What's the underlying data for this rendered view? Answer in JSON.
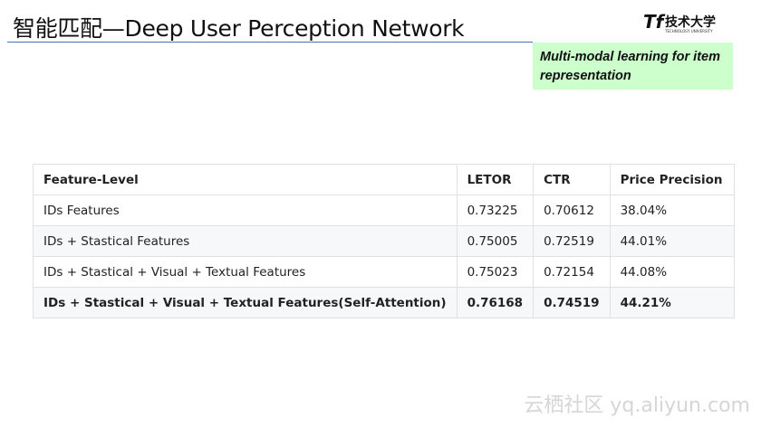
{
  "slide": {
    "title": "智能匹配—Deep User Perception Network",
    "logo": {
      "cn": "技术大学",
      "en": "TECHNOLOGY UNIVERSITY"
    },
    "note": "Multi-modal  learning for item representation",
    "watermark": "云栖社区 yq.aliyun.com"
  },
  "table": {
    "headers": [
      "Feature-Level",
      "LETOR",
      "CTR",
      "Price Precision"
    ],
    "rows": [
      [
        "IDs Features",
        "0.73225",
        "0.70612",
        "38.04%"
      ],
      [
        "IDs + Stastical Features",
        "0.75005",
        "0.72519",
        "44.01%"
      ],
      [
        "IDs + Stastical + Visual + Textual Features",
        "0.75023",
        "0.72154",
        "44.08%"
      ],
      [
        "IDs + Stastical + Visual + Textual Features(Self-Attention)",
        "0.76168",
        "0.74519",
        "44.21%"
      ]
    ]
  },
  "colors": {
    "rule": "#4a6fb5",
    "note_bg": "#ccffcc",
    "alt_row": "#f6f8fa"
  }
}
